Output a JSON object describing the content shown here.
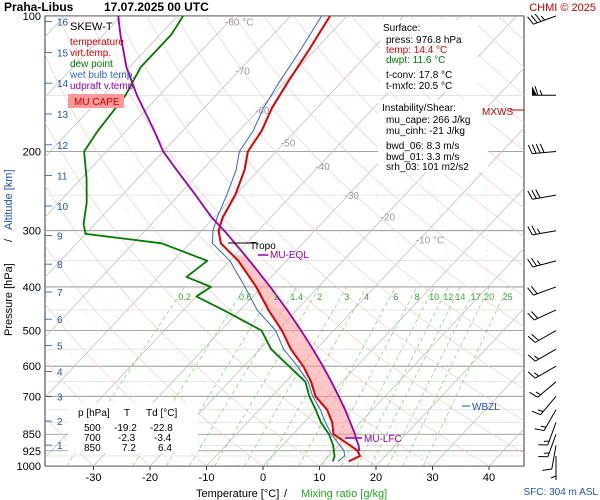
{
  "header": {
    "station": "Praha-Libus",
    "datetime": "17.07.2025 00 UTC",
    "credit": "CHMI © 2025"
  },
  "legend": {
    "title": "SKEW-T",
    "items": [
      {
        "label": "temperature",
        "color": "#e00000"
      },
      {
        "label": "virt.temp.",
        "color": "#e00000"
      },
      {
        "label": "dew point",
        "color": "#007a00"
      },
      {
        "label": "wet bulb temp.",
        "color": "#3366cc"
      },
      {
        "label": "udpraft v.temp.",
        "color": "#9900aa"
      }
    ],
    "cape_label": "MU CAPE"
  },
  "surface_box": {
    "title": "Surface:",
    "press": "press: 976.8 hPa",
    "temp": "temp: 14.4 °C",
    "dwpt": "dwpt: 11.6 °C",
    "tconv": "t-conv: 17.8 °C",
    "tmxfc": "t-mxfc: 20.5 °C"
  },
  "instability_box": {
    "title": "Instability/Shear:",
    "mu_cape": "mu_cape: 266 J/kg",
    "mu_cinh": "mu_cinh: -21 J/kg",
    "bwd_06": "bwd_06: 8.3 m/s",
    "bwd_01": "bwd_01: 3.3 m/s",
    "srh_03": "srh_03: 101 m2/s2"
  },
  "table": {
    "headers": [
      "p [hPa]",
      "T",
      "Td [°C]"
    ],
    "rows": [
      [
        "500",
        "-19.2",
        "-22.8"
      ],
      [
        "700",
        "-2.3",
        "-3.4"
      ],
      [
        "850",
        "7.2",
        "6.4"
      ]
    ]
  },
  "labels": {
    "tropo": "Tropo",
    "mu_eql": "MU-EQL",
    "mu_lfc": "MU-LFC",
    "wbzl": "WBZL",
    "mxws": "MXWS",
    "sfc": "SFC: 304 m ASL"
  },
  "chart_data": {
    "type": "line",
    "title": "Praha-Libus 17.07.2025 00 UTC",
    "xlabel": "Temperature [°C]",
    "xlabel_extra": "Mixing ratio [g/kg]",
    "ylabel": "Pressure [hPa]",
    "ylabel_extra": "Altitude [km]",
    "x_ticks": [
      -30,
      -20,
      -10,
      0,
      10,
      20,
      30,
      40
    ],
    "p_ticks": [
      100,
      200,
      300,
      400,
      500,
      600,
      700,
      850,
      925,
      1000
    ],
    "p_range": [
      100,
      1000
    ],
    "skew_isotherm_labels": [
      "-80 °C",
      "-70",
      "-60",
      "-50",
      "-40",
      "-30",
      "-20",
      "-10 °C"
    ],
    "mixing_ratio_labels": [
      "0.2",
      "0.6",
      "1",
      "1.4",
      "2",
      "3",
      "4",
      "6",
      "8",
      "10",
      "12",
      "14",
      "17",
      "20",
      "25"
    ],
    "altitude_ticks_km": [
      "1",
      "2",
      "3",
      "4",
      "5",
      "6",
      "7",
      "8",
      "9",
      "10",
      "11",
      "12",
      "13",
      "14",
      "15",
      "16"
    ],
    "series": [
      {
        "name": "temperature",
        "color": "#e00000",
        "points": [
          [
            976.8,
            14.4
          ],
          [
            950,
            15.5
          ],
          [
            925,
            14.2
          ],
          [
            900,
            12.0
          ],
          [
            850,
            7.2
          ],
          [
            800,
            5.0
          ],
          [
            750,
            2.0
          ],
          [
            700,
            -2.3
          ],
          [
            650,
            -5.5
          ],
          [
            600,
            -9.5
          ],
          [
            550,
            -14.5
          ],
          [
            500,
            -19.2
          ],
          [
            450,
            -25.0
          ],
          [
            400,
            -31.0
          ],
          [
            350,
            -38.5
          ],
          [
            320,
            -44.5
          ],
          [
            300,
            -47.0
          ],
          [
            280,
            -48.5
          ],
          [
            250,
            -50.0
          ],
          [
            220,
            -52.5
          ],
          [
            200,
            -55.0
          ],
          [
            180,
            -56.0
          ],
          [
            160,
            -58.0
          ],
          [
            140,
            -59.5
          ],
          [
            120,
            -61.0
          ],
          [
            100,
            -63.0
          ]
        ]
      },
      {
        "name": "dew point",
        "color": "#007a00",
        "points": [
          [
            976.8,
            11.6
          ],
          [
            950,
            11.0
          ],
          [
            925,
            10.0
          ],
          [
            900,
            9.0
          ],
          [
            850,
            6.4
          ],
          [
            800,
            3.0
          ],
          [
            750,
            0.0
          ],
          [
            700,
            -3.4
          ],
          [
            650,
            -6.5
          ],
          [
            600,
            -12.0
          ],
          [
            550,
            -18.0
          ],
          [
            500,
            -22.8
          ],
          [
            450,
            -33.0
          ],
          [
            420,
            -40.0
          ],
          [
            400,
            -39.0
          ],
          [
            380,
            -45.0
          ],
          [
            350,
            -44.0
          ],
          [
            320,
            -55.0
          ],
          [
            305,
            -70.0
          ],
          [
            290,
            -72.0
          ],
          [
            260,
            -75.0
          ],
          [
            230,
            -79.0
          ],
          [
            200,
            -84.0
          ],
          [
            180,
            -85.0
          ],
          [
            150,
            -86.0
          ],
          [
            130,
            -88.0
          ],
          [
            110,
            -88.0
          ],
          [
            100,
            -89.0
          ]
        ]
      },
      {
        "name": "wet bulb temp.",
        "color": "#3366cc",
        "points": [
          [
            976.8,
            12.5
          ],
          [
            950,
            12.8
          ],
          [
            925,
            11.8
          ],
          [
            900,
            10.2
          ],
          [
            850,
            6.8
          ],
          [
            800,
            3.8
          ],
          [
            750,
            0.8
          ],
          [
            700,
            -2.8
          ],
          [
            650,
            -6.0
          ],
          [
            600,
            -10.5
          ],
          [
            550,
            -15.8
          ],
          [
            500,
            -20.3
          ],
          [
            450,
            -27.0
          ],
          [
            400,
            -33.0
          ],
          [
            350,
            -40.0
          ],
          [
            320,
            -46.0
          ],
          [
            300,
            -48.0
          ],
          [
            280,
            -49.5
          ],
          [
            250,
            -51.5
          ],
          [
            220,
            -54.0
          ],
          [
            200,
            -56.5
          ],
          [
            180,
            -57.5
          ],
          [
            160,
            -59.5
          ],
          [
            140,
            -61.0
          ],
          [
            120,
            -62.5
          ],
          [
            100,
            -64.5
          ]
        ]
      },
      {
        "name": "udpraft v.temp.",
        "color": "#9900aa",
        "points": [
          [
            925,
            14.5
          ],
          [
            900,
            13.5
          ],
          [
            875,
            12.2
          ],
          [
            850,
            11.0
          ],
          [
            800,
            8.2
          ],
          [
            750,
            5.2
          ],
          [
            700,
            1.8
          ],
          [
            650,
            -1.9
          ],
          [
            600,
            -6.0
          ],
          [
            550,
            -10.6
          ],
          [
            500,
            -15.8
          ],
          [
            450,
            -21.7
          ],
          [
            400,
            -28.5
          ],
          [
            350,
            -36.5
          ],
          [
            320,
            -42.0
          ],
          [
            300,
            -46.0
          ],
          [
            280,
            -50.5
          ],
          [
            250,
            -57.0
          ],
          [
            220,
            -64.5
          ],
          [
            200,
            -70.0
          ],
          [
            180,
            -75.0
          ],
          [
            150,
            -84.0
          ],
          [
            130,
            -90.5
          ],
          [
            110,
            -97.0
          ],
          [
            100,
            -100.5
          ]
        ]
      }
    ],
    "mu_cape_area": {
      "color": "#ff9999",
      "p_from": 870,
      "p_to": 338
    },
    "wind_barbs": [
      {
        "p": 100,
        "dir": 250,
        "speed_kt": 35
      },
      {
        "p": 150,
        "dir": 270,
        "speed_kt": 65
      },
      {
        "p": 200,
        "dir": 265,
        "speed_kt": 40
      },
      {
        "p": 250,
        "dir": 260,
        "speed_kt": 30
      },
      {
        "p": 300,
        "dir": 260,
        "speed_kt": 25
      },
      {
        "p": 350,
        "dir": 255,
        "speed_kt": 25
      },
      {
        "p": 400,
        "dir": 250,
        "speed_kt": 20
      },
      {
        "p": 450,
        "dir": 245,
        "speed_kt": 20
      },
      {
        "p": 500,
        "dir": 240,
        "speed_kt": 20
      },
      {
        "p": 550,
        "dir": 240,
        "speed_kt": 15
      },
      {
        "p": 600,
        "dir": 240,
        "speed_kt": 15
      },
      {
        "p": 650,
        "dir": 230,
        "speed_kt": 15
      },
      {
        "p": 700,
        "dir": 220,
        "speed_kt": 15
      },
      {
        "p": 750,
        "dir": 210,
        "speed_kt": 15
      },
      {
        "p": 800,
        "dir": 200,
        "speed_kt": 15
      },
      {
        "p": 850,
        "dir": 200,
        "speed_kt": 15
      },
      {
        "p": 900,
        "dir": 190,
        "speed_kt": 10
      },
      {
        "p": 950,
        "dir": 180,
        "speed_kt": 5
      }
    ]
  }
}
